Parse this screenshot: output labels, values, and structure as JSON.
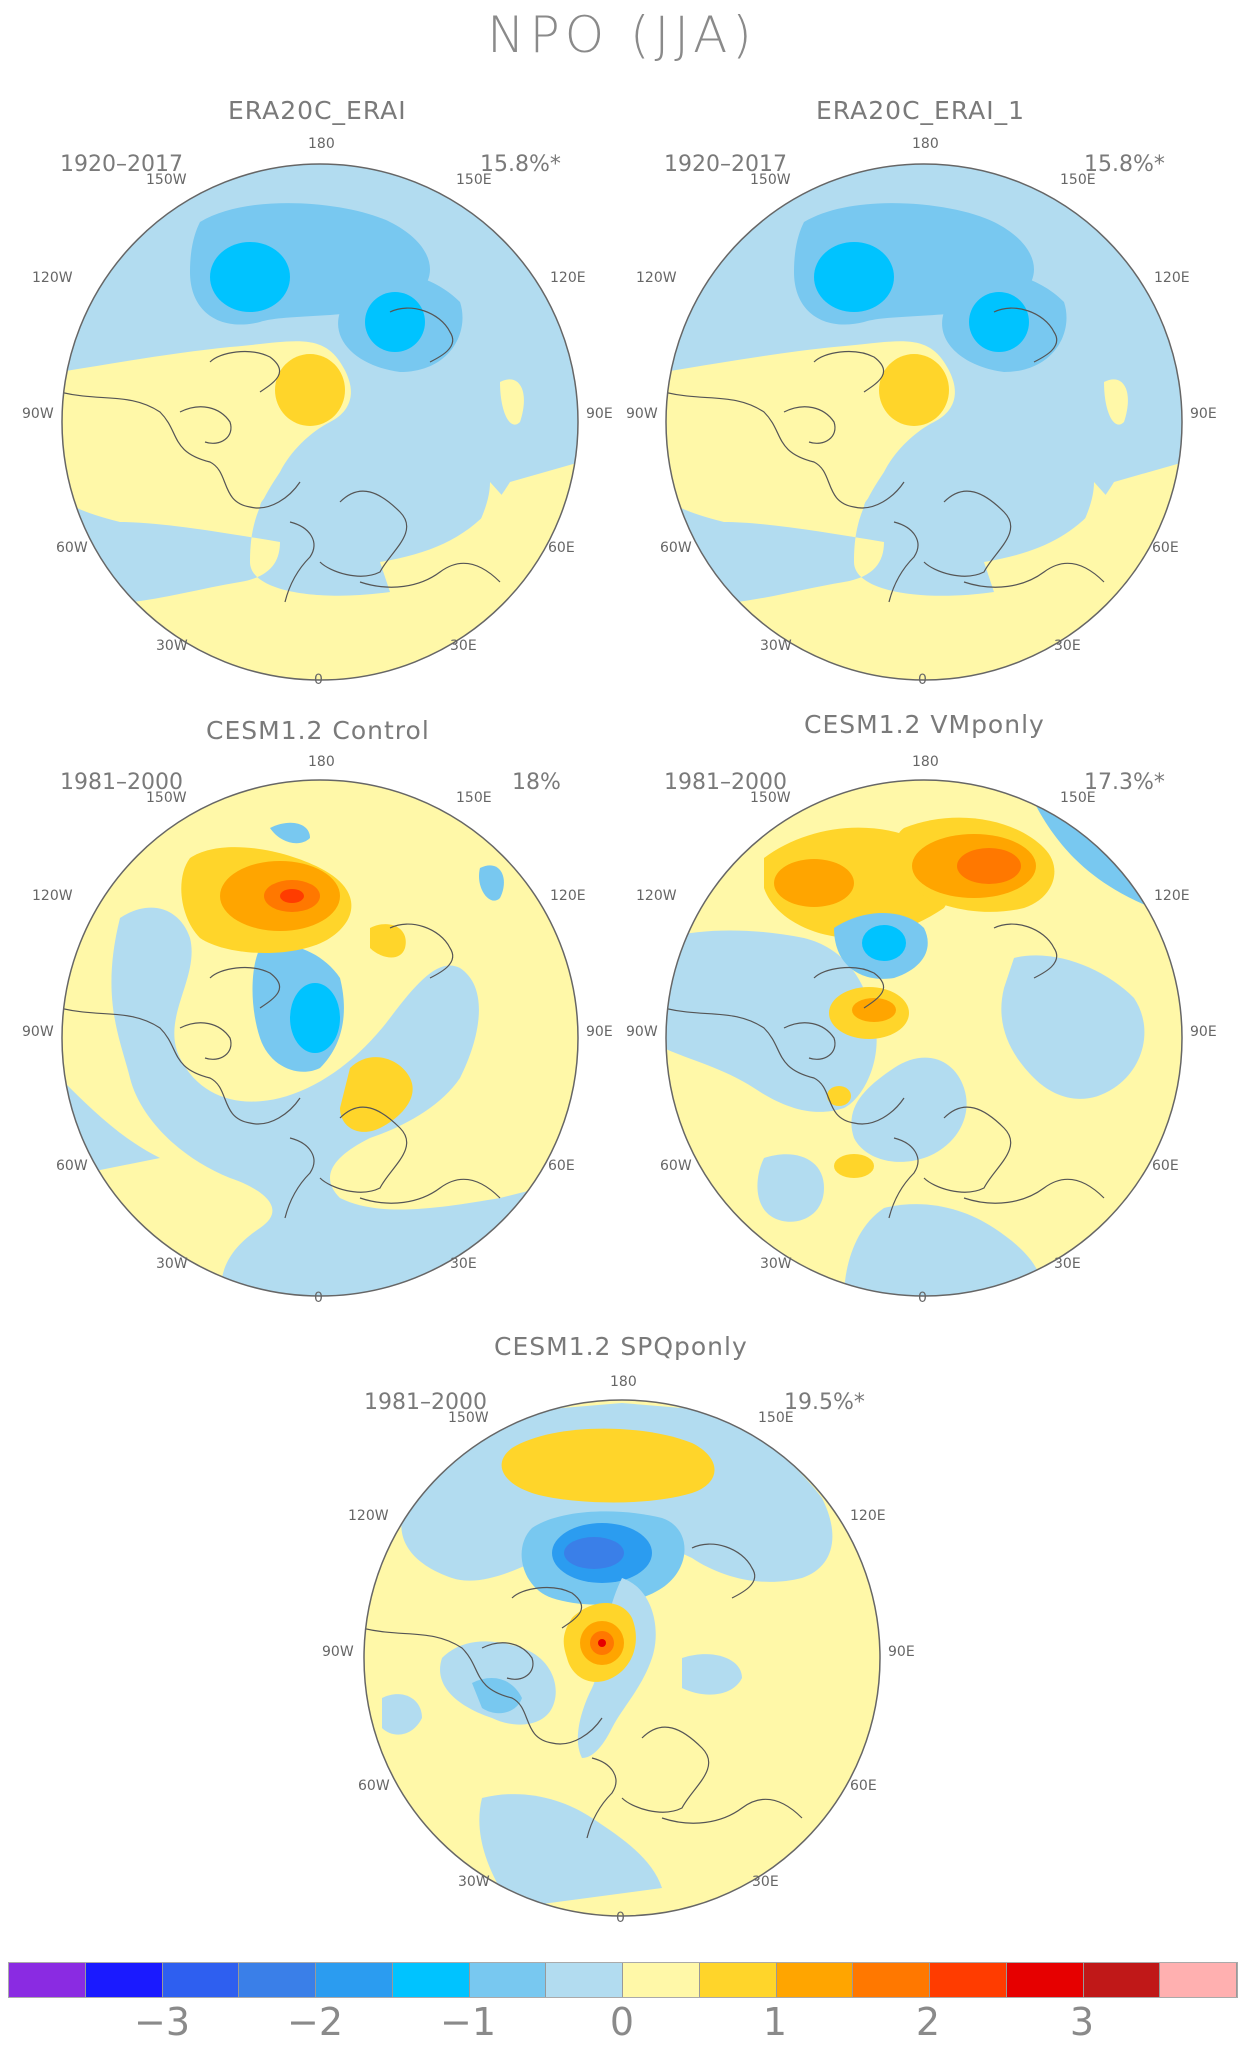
{
  "title": "NPO (JJA)",
  "panels": [
    {
      "id": "p1",
      "title": "ERA20C_ERAI",
      "period": "1920–2017",
      "pct": "15.8%*"
    },
    {
      "id": "p2",
      "title": "ERA20C_ERAI_1",
      "period": "1920–2017",
      "pct": "15.8%*"
    },
    {
      "id": "p3",
      "title": "CESM1.2 Control",
      "period": "1981–2000",
      "pct": "18%"
    },
    {
      "id": "p4",
      "title": "CESM1.2 VMponly",
      "period": "1981–2000",
      "pct": "17.3%*"
    },
    {
      "id": "p5",
      "title": "CESM1.2 SPQponly",
      "period": "1981–2000",
      "pct": "19.5%*"
    }
  ],
  "lon_labels": {
    "top": "180",
    "tl": "150W",
    "tr": "150E",
    "ul": "120W",
    "ur": "120E",
    "l": "90W",
    "r": "90E",
    "ll": "60W",
    "lr": "60E",
    "bl": "30W",
    "br": "30E",
    "bottom": "0"
  },
  "colorbar": {
    "colors": [
      "#8a2be2",
      "#1a1aff",
      "#2e5ff0",
      "#3a7fe8",
      "#2b9cf0",
      "#00c3ff",
      "#78c8f0",
      "#b2dcf0",
      "#fff8a8",
      "#ffd52a",
      "#ffa500",
      "#ff7800",
      "#ff3c00",
      "#e60000",
      "#c01818",
      "#ffb0b0"
    ],
    "tick_labels": [
      "−3",
      "−2",
      "−1",
      "0",
      "1",
      "2",
      "3"
    ]
  },
  "chart_data": {
    "type": "heatmap",
    "title": "NPO (JJA)",
    "scale_ticks": [
      -3,
      -2,
      -1,
      0,
      1,
      2,
      3
    ]
  }
}
